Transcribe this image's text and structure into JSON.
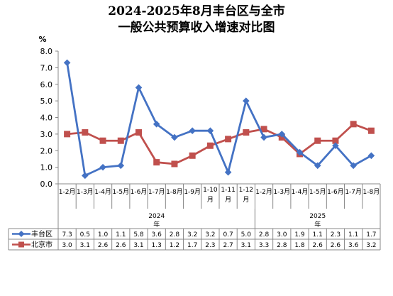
{
  "title_line1": "2024-2025年8月丰台区与全市",
  "title_line2": "一般公共预算收入增速对比图",
  "chart_data": {
    "type": "line",
    "title": "2024-2025年8月丰台区与全市一般公共预算收入增速对比图",
    "ylabel": "%",
    "ylim": [
      0,
      8
    ],
    "yticks": [
      "0.0",
      "1.0",
      "2.0",
      "3.0",
      "4.0",
      "5.0",
      "6.0",
      "7.0",
      "8.0"
    ],
    "categories": [
      [
        "1-2月"
      ],
      [
        "1-3月"
      ],
      [
        "1-4月"
      ],
      [
        "1-5月"
      ],
      [
        "1-6月"
      ],
      [
        "1-7月"
      ],
      [
        "1-8月"
      ],
      [
        "1-9月"
      ],
      [
        "1-10",
        "月"
      ],
      [
        "1-11",
        "月"
      ],
      [
        "1-12",
        "月"
      ],
      [
        "1-2月"
      ],
      [
        "1-3月"
      ],
      [
        "1-4月"
      ],
      [
        "1-5月"
      ],
      [
        "1-6月"
      ],
      [
        "1-7月"
      ],
      [
        "1-8月"
      ]
    ],
    "groups": [
      {
        "label": [
          "2024",
          "年"
        ],
        "start": 0,
        "count": 11
      },
      {
        "label": [
          "2025",
          "年"
        ],
        "start": 11,
        "count": 7
      }
    ],
    "series": [
      {
        "name": "丰台区",
        "color": "#4472C4",
        "marker": "diamond",
        "values": [
          7.3,
          0.5,
          1.0,
          1.1,
          5.8,
          3.6,
          2.8,
          3.2,
          3.2,
          0.7,
          5.0,
          2.8,
          3.0,
          1.9,
          1.1,
          2.3,
          1.1,
          1.7
        ],
        "labels": [
          "7.3",
          "0.5",
          "1.0",
          "1.1",
          "5.8",
          "3.6",
          "2.8",
          "3.2",
          "3.2",
          "0.7",
          "5.0",
          "2.8",
          "3.0",
          "1.9",
          "1.1",
          "2.3",
          "1.1",
          "1.7"
        ]
      },
      {
        "name": "北京市",
        "color": "#C0504D",
        "marker": "square",
        "values": [
          3.0,
          3.1,
          2.6,
          2.6,
          3.1,
          1.3,
          1.2,
          1.7,
          2.3,
          2.7,
          3.1,
          3.3,
          2.8,
          1.8,
          2.6,
          2.6,
          3.6,
          3.2
        ],
        "labels": [
          "3.0",
          "3.1",
          "2.6",
          "2.6",
          "3.1",
          "1.3",
          "1.2",
          "1.7",
          "2.3",
          "2.7",
          "3.1",
          "3.3",
          "2.8",
          "1.8",
          "2.6",
          "2.6",
          "3.6",
          "3.2"
        ]
      }
    ],
    "grid": false,
    "legend": "data-table-left"
  }
}
